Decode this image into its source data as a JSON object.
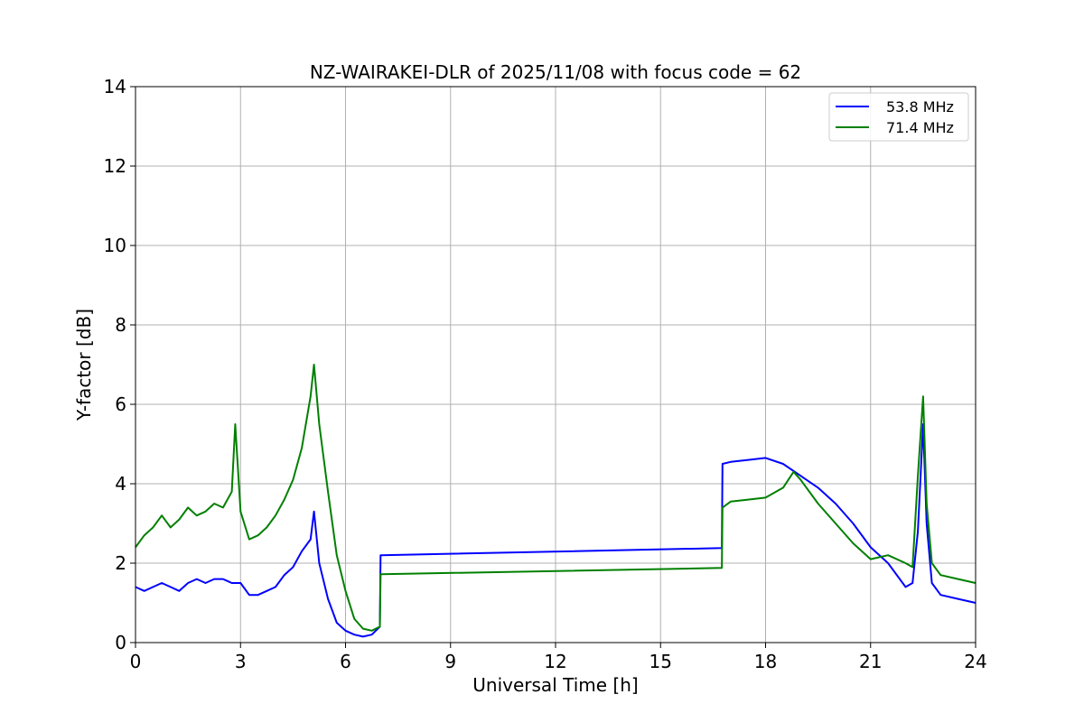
{
  "chart_data": {
    "type": "line",
    "title": "NZ-WAIRAKEI-DLR of 2025/11/08 with focus code = 62",
    "xlabel": "Universal Time [h]",
    "ylabel": "Y-factor [dB]",
    "xlim": [
      0,
      24
    ],
    "ylim": [
      0,
      14
    ],
    "xticks": [
      0,
      3,
      6,
      9,
      12,
      15,
      18,
      21,
      24
    ],
    "yticks": [
      0,
      2,
      4,
      6,
      8,
      10,
      12,
      14
    ],
    "grid": true,
    "legend_position": "top-right",
    "series": [
      {
        "name": "53.8 MHz",
        "color": "#0000ff",
        "x": [
          0.0,
          0.25,
          0.5,
          0.75,
          1.0,
          1.25,
          1.5,
          1.75,
          2.0,
          2.25,
          2.5,
          2.75,
          3.0,
          3.25,
          3.5,
          3.75,
          4.0,
          4.25,
          4.5,
          4.75,
          5.0,
          5.1,
          5.25,
          5.5,
          5.75,
          6.0,
          6.25,
          6.5,
          6.75,
          6.98,
          7.0,
          7.02,
          16.75,
          16.77,
          17.0,
          17.5,
          18.0,
          18.5,
          19.0,
          19.5,
          20.0,
          20.5,
          21.0,
          21.5,
          22.0,
          22.2,
          22.35,
          22.5,
          22.6,
          22.75,
          23.0,
          23.5,
          24.0
        ],
        "values": [
          1.4,
          1.3,
          1.4,
          1.5,
          1.4,
          1.3,
          1.5,
          1.6,
          1.5,
          1.6,
          1.6,
          1.5,
          1.5,
          1.2,
          1.2,
          1.3,
          1.4,
          1.7,
          1.9,
          2.3,
          2.6,
          3.3,
          2.0,
          1.1,
          0.5,
          0.3,
          0.2,
          0.15,
          0.2,
          0.4,
          2.2,
          2.2,
          2.38,
          4.5,
          4.55,
          4.6,
          4.65,
          4.5,
          4.2,
          3.9,
          3.5,
          3.0,
          2.4,
          2.0,
          1.4,
          1.5,
          2.8,
          5.5,
          3.0,
          1.5,
          1.2,
          1.1,
          1.0
        ]
      },
      {
        "name": "71.4 MHz",
        "color": "#008000",
        "x": [
          0.0,
          0.25,
          0.5,
          0.75,
          1.0,
          1.25,
          1.5,
          1.75,
          2.0,
          2.25,
          2.5,
          2.75,
          2.85,
          3.0,
          3.25,
          3.5,
          3.75,
          4.0,
          4.25,
          4.5,
          4.75,
          5.0,
          5.1,
          5.25,
          5.5,
          5.75,
          6.0,
          6.25,
          6.5,
          6.75,
          6.98,
          7.0,
          7.02,
          16.75,
          16.77,
          17.0,
          17.5,
          18.0,
          18.5,
          18.8,
          19.0,
          19.5,
          20.0,
          20.5,
          21.0,
          21.5,
          22.0,
          22.2,
          22.35,
          22.5,
          22.6,
          22.75,
          23.0,
          23.5,
          24.0
        ],
        "values": [
          2.4,
          2.7,
          2.9,
          3.2,
          2.9,
          3.1,
          3.4,
          3.2,
          3.3,
          3.5,
          3.4,
          3.8,
          5.5,
          3.3,
          2.6,
          2.7,
          2.9,
          3.2,
          3.6,
          4.1,
          4.9,
          6.2,
          7.0,
          5.5,
          3.8,
          2.2,
          1.3,
          0.6,
          0.35,
          0.3,
          0.4,
          1.72,
          1.72,
          1.88,
          3.4,
          3.55,
          3.6,
          3.65,
          3.9,
          4.3,
          4.1,
          3.5,
          3.0,
          2.5,
          2.1,
          2.2,
          2.0,
          1.9,
          4.2,
          6.2,
          3.5,
          2.0,
          1.7,
          1.6,
          1.5
        ]
      }
    ]
  }
}
